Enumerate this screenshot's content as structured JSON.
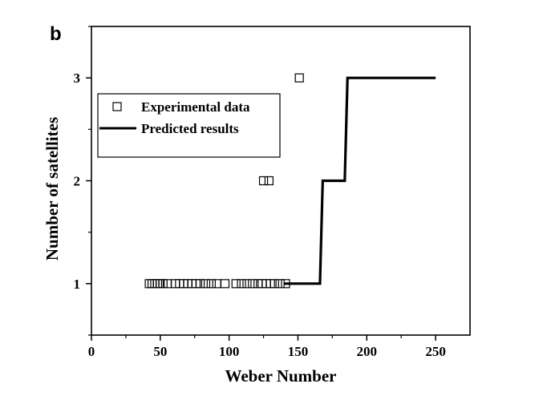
{
  "chart_data": {
    "type": "scatter",
    "panel_label": "b",
    "xlabel": "Weber Number",
    "ylabel": "Number of satellites",
    "xlim": [
      0,
      275
    ],
    "ylim": [
      0.5,
      3.5
    ],
    "x_ticks": [
      0,
      50,
      100,
      150,
      200,
      250
    ],
    "y_ticks": [
      1,
      2,
      3
    ],
    "grid": false,
    "legend_position": "top-left",
    "series": [
      {
        "name": "Experimental data",
        "type": "scatter",
        "marker": "open-square",
        "color": "#000000",
        "points": [
          {
            "x": 42,
            "y": 1
          },
          {
            "x": 44,
            "y": 1
          },
          {
            "x": 46,
            "y": 1
          },
          {
            "x": 48,
            "y": 1
          },
          {
            "x": 50,
            "y": 1
          },
          {
            "x": 52,
            "y": 1
          },
          {
            "x": 55,
            "y": 1
          },
          {
            "x": 61,
            "y": 1
          },
          {
            "x": 64,
            "y": 1
          },
          {
            "x": 67,
            "y": 1
          },
          {
            "x": 70,
            "y": 1
          },
          {
            "x": 73,
            "y": 1
          },
          {
            "x": 76,
            "y": 1
          },
          {
            "x": 79,
            "y": 1
          },
          {
            "x": 83,
            "y": 1
          },
          {
            "x": 87,
            "y": 1
          },
          {
            "x": 91,
            "y": 1
          },
          {
            "x": 97,
            "y": 1
          },
          {
            "x": 105,
            "y": 1
          },
          {
            "x": 109,
            "y": 1
          },
          {
            "x": 113,
            "y": 1
          },
          {
            "x": 117,
            "y": 1
          },
          {
            "x": 121,
            "y": 1
          },
          {
            "x": 124,
            "y": 1
          },
          {
            "x": 127,
            "y": 1
          },
          {
            "x": 130,
            "y": 1
          },
          {
            "x": 133,
            "y": 1
          },
          {
            "x": 137,
            "y": 1
          },
          {
            "x": 141,
            "y": 1
          },
          {
            "x": 125,
            "y": 2
          },
          {
            "x": 129,
            "y": 2
          },
          {
            "x": 151,
            "y": 3
          }
        ]
      },
      {
        "name": "Predicted results",
        "type": "line",
        "line_style": "step",
        "color": "#000000",
        "points": [
          {
            "x": 140,
            "y": 1
          },
          {
            "x": 166,
            "y": 1
          },
          {
            "x": 168,
            "y": 2
          },
          {
            "x": 184,
            "y": 2
          },
          {
            "x": 186,
            "y": 3
          },
          {
            "x": 250,
            "y": 3
          }
        ]
      }
    ]
  }
}
